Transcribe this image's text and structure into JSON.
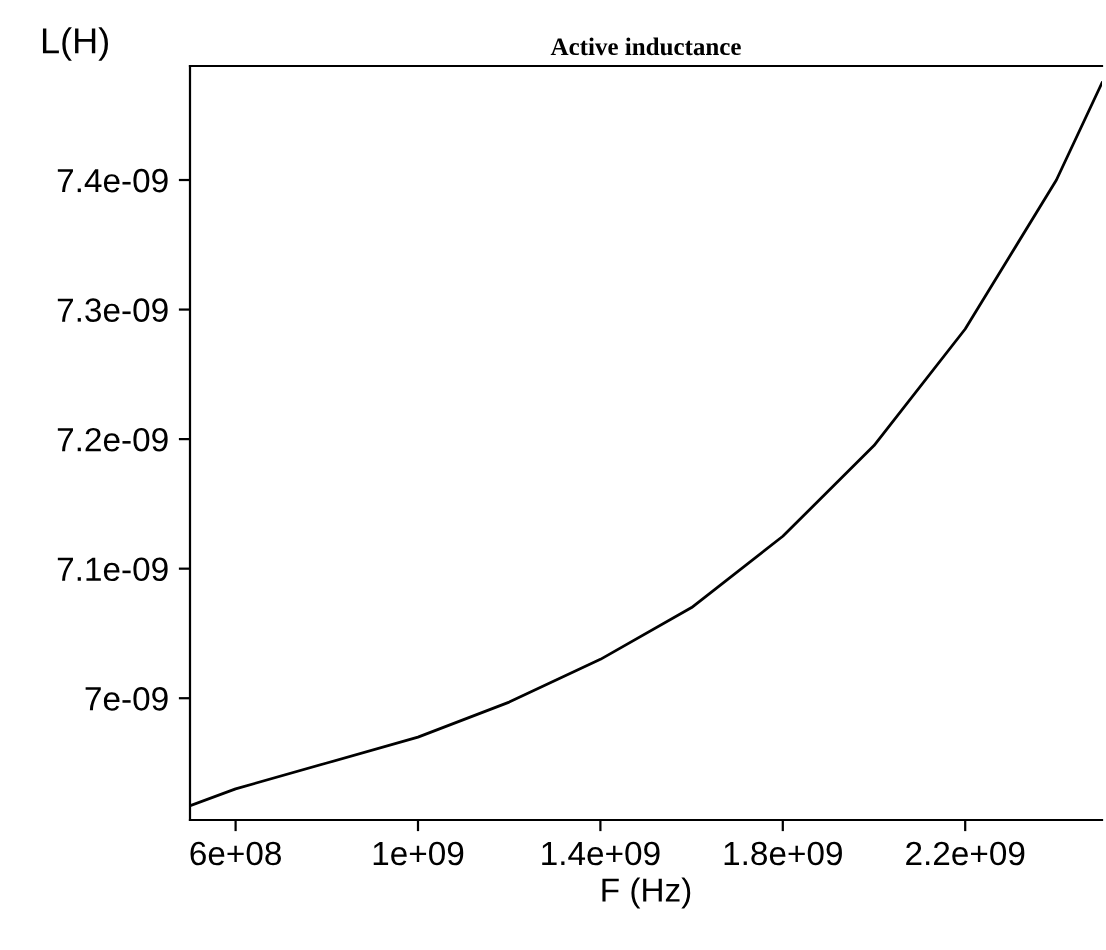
{
  "chart_data": {
    "type": "line",
    "title": "Active inductance",
    "xlabel": "F (Hz)",
    "ylabel": "L(H)",
    "x": [
      500000000.0,
      600000000.0,
      800000000.0,
      1000000000.0,
      1200000000.0,
      1400000000.0,
      1600000000.0,
      1800000000.0,
      2000000000.0,
      2200000000.0,
      2400000000.0,
      2500000000.0
    ],
    "series": [
      {
        "color": "#000000",
        "values": [
          6.917e-09,
          6.93e-09,
          6.95e-09,
          6.97e-09,
          6.997e-09,
          7.03e-09,
          7.07e-09,
          7.125e-09,
          7.195e-09,
          7.285e-09,
          7.4e-09,
          7.475e-09
        ]
      }
    ],
    "xlim": [
      500000000.0,
      2500000000.0
    ],
    "ylim": [
      6.906e-09,
      7.488e-09
    ],
    "xticks": [
      {
        "value": 600000000.0,
        "label": "6e+08"
      },
      {
        "value": 1000000000.0,
        "label": "1e+09"
      },
      {
        "value": 1400000000.0,
        "label": "1.4e+09"
      },
      {
        "value": 1800000000.0,
        "label": "1.8e+09"
      },
      {
        "value": 2200000000.0,
        "label": "2.2e+09"
      }
    ],
    "yticks": [
      {
        "value": 7e-09,
        "label": "7e-09"
      },
      {
        "value": 7.1e-09,
        "label": "7.1e-09"
      },
      {
        "value": 7.2e-09,
        "label": "7.2e-09"
      },
      {
        "value": 7.3e-09,
        "label": "7.3e-09"
      },
      {
        "value": 7.4e-09,
        "label": "7.4e-09"
      }
    ],
    "grid": false,
    "legend": false,
    "marker": "none",
    "line_style": "solid"
  }
}
